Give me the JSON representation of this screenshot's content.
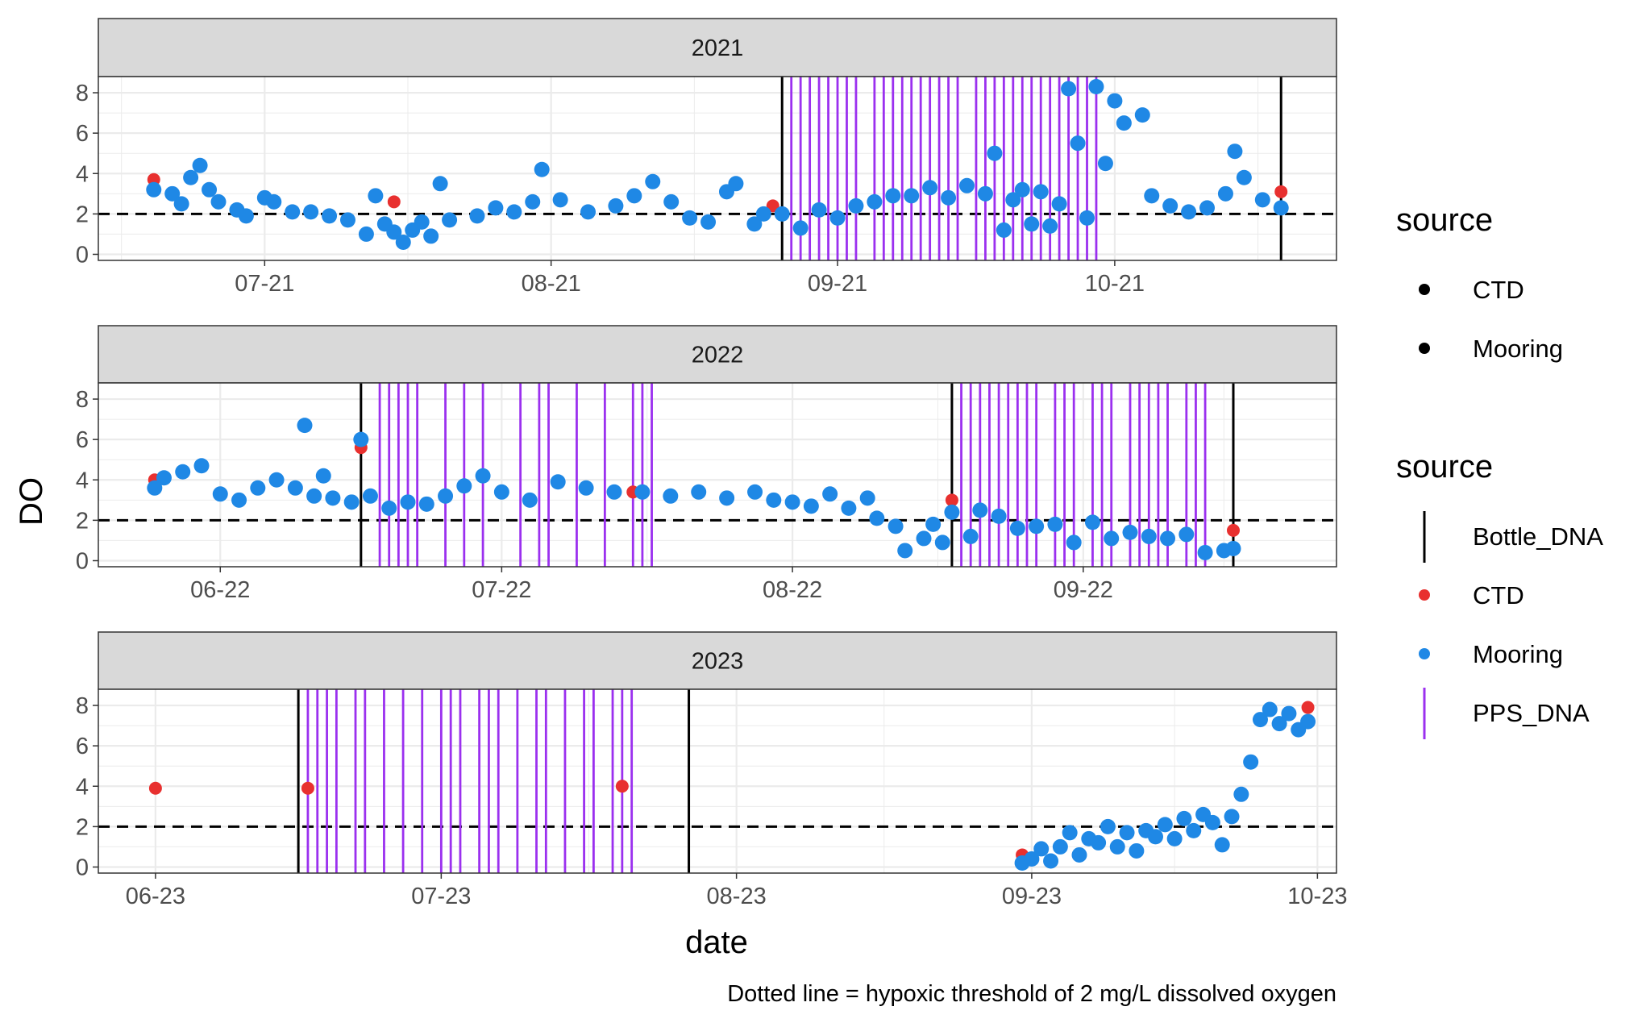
{
  "chart_data": {
    "type": "scatter",
    "facet_variable": "year",
    "xlabel": "date",
    "ylabel": "DO",
    "caption": "Dotted line = hypoxic threshold of 2 mg/L dissolved oxygen",
    "hypoxic_threshold": 2,
    "ylim": [
      -0.3,
      8.8
    ],
    "y_ticks": [
      0,
      2,
      4,
      6,
      8
    ],
    "grid": true,
    "facets": [
      {
        "label": "2021",
        "xlim": [
          "2021-06-13",
          "2021-10-25"
        ],
        "x_ticks": [
          {
            "date": "2021-07-01",
            "label": "07-21"
          },
          {
            "date": "2021-08-01",
            "label": "08-21"
          },
          {
            "date": "2021-09-01",
            "label": "09-21"
          },
          {
            "date": "2021-10-01",
            "label": "10-21"
          }
        ],
        "ctd": [
          {
            "date": "2021-06-19",
            "do": 3.7
          },
          {
            "date": "2021-07-15",
            "do": 2.6
          },
          {
            "date": "2021-08-25",
            "do": 2.4
          },
          {
            "date": "2021-10-19",
            "do": 3.1
          }
        ],
        "mooring": [
          [
            "2021-06-19",
            3.2
          ],
          [
            "2021-06-21",
            3.0
          ],
          [
            "2021-06-22",
            2.5
          ],
          [
            "2021-06-23",
            3.8
          ],
          [
            "2021-06-24",
            4.4
          ],
          [
            "2021-06-25",
            3.2
          ],
          [
            "2021-06-26",
            2.6
          ],
          [
            "2021-06-28",
            2.2
          ],
          [
            "2021-06-29",
            1.9
          ],
          [
            "2021-07-01",
            2.8
          ],
          [
            "2021-07-02",
            2.6
          ],
          [
            "2021-07-04",
            2.1
          ],
          [
            "2021-07-06",
            2.1
          ],
          [
            "2021-07-08",
            1.9
          ],
          [
            "2021-07-10",
            1.7
          ],
          [
            "2021-07-12",
            1.0
          ],
          [
            "2021-07-13",
            2.9
          ],
          [
            "2021-07-14",
            1.5
          ],
          [
            "2021-07-15",
            1.1
          ],
          [
            "2021-07-16",
            0.6
          ],
          [
            "2021-07-17",
            1.2
          ],
          [
            "2021-07-18",
            1.6
          ],
          [
            "2021-07-19",
            0.9
          ],
          [
            "2021-07-20",
            3.5
          ],
          [
            "2021-07-21",
            1.7
          ],
          [
            "2021-07-24",
            1.9
          ],
          [
            "2021-07-26",
            2.3
          ],
          [
            "2021-07-28",
            2.1
          ],
          [
            "2021-07-30",
            2.6
          ],
          [
            "2021-07-31",
            4.2
          ],
          [
            "2021-08-02",
            2.7
          ],
          [
            "2021-08-05",
            2.1
          ],
          [
            "2021-08-08",
            2.4
          ],
          [
            "2021-08-10",
            2.9
          ],
          [
            "2021-08-12",
            3.6
          ],
          [
            "2021-08-14",
            2.6
          ],
          [
            "2021-08-16",
            1.8
          ],
          [
            "2021-08-18",
            1.6
          ],
          [
            "2021-08-20",
            3.1
          ],
          [
            "2021-08-21",
            3.5
          ],
          [
            "2021-08-23",
            1.5
          ],
          [
            "2021-08-24",
            2.0
          ],
          [
            "2021-08-26",
            2.0
          ],
          [
            "2021-08-28",
            1.3
          ],
          [
            "2021-08-30",
            2.2
          ],
          [
            "2021-09-01",
            1.8
          ],
          [
            "2021-09-03",
            2.4
          ],
          [
            "2021-09-05",
            2.6
          ],
          [
            "2021-09-07",
            2.9
          ],
          [
            "2021-09-09",
            2.9
          ],
          [
            "2021-09-11",
            3.3
          ],
          [
            "2021-09-13",
            2.8
          ],
          [
            "2021-09-15",
            3.4
          ],
          [
            "2021-09-17",
            3.0
          ],
          [
            "2021-09-18",
            5.0
          ],
          [
            "2021-09-19",
            1.2
          ],
          [
            "2021-09-20",
            2.7
          ],
          [
            "2021-09-21",
            3.2
          ],
          [
            "2021-09-22",
            1.5
          ],
          [
            "2021-09-23",
            3.1
          ],
          [
            "2021-09-24",
            1.4
          ],
          [
            "2021-09-25",
            2.5
          ],
          [
            "2021-09-26",
            8.2
          ],
          [
            "2021-09-27",
            5.5
          ],
          [
            "2021-09-28",
            1.8
          ],
          [
            "2021-09-29",
            8.3
          ],
          [
            "2021-09-30",
            4.5
          ],
          [
            "2021-10-01",
            7.6
          ],
          [
            "2021-10-02",
            6.5
          ],
          [
            "2021-10-04",
            6.9
          ],
          [
            "2021-10-05",
            2.9
          ],
          [
            "2021-10-07",
            2.4
          ],
          [
            "2021-10-09",
            2.1
          ],
          [
            "2021-10-11",
            2.3
          ],
          [
            "2021-10-13",
            3.0
          ],
          [
            "2021-10-14",
            5.1
          ],
          [
            "2021-10-15",
            3.8
          ],
          [
            "2021-10-17",
            2.7
          ],
          [
            "2021-10-19",
            2.3
          ]
        ],
        "bottle_dna": [
          "2021-08-26",
          "2021-10-19"
        ],
        "pps_dna": [
          "2021-08-27",
          "2021-08-28",
          "2021-08-29",
          "2021-08-30",
          "2021-08-31",
          "2021-09-01",
          "2021-09-02",
          "2021-09-03",
          "2021-09-05",
          "2021-09-06",
          "2021-09-07",
          "2021-09-08",
          "2021-09-09",
          "2021-09-10",
          "2021-09-11",
          "2021-09-12",
          "2021-09-13",
          "2021-09-14",
          "2021-09-16",
          "2021-09-17",
          "2021-09-18",
          "2021-09-19",
          "2021-09-20",
          "2021-09-21",
          "2021-09-22",
          "2021-09-23",
          "2021-09-24",
          "2021-09-25",
          "2021-09-26",
          "2021-09-27",
          "2021-09-28",
          "2021-09-29"
        ]
      },
      {
        "label": "2022",
        "xlim": [
          "2022-06-09",
          "2022-10-19"
        ],
        "x_ticks": [
          {
            "date": "2022-06-22",
            "label": "06-22"
          },
          {
            "date": "2022-07-22",
            "label": "07-22"
          },
          {
            "date": "2022-08-22",
            "label": "08-22"
          },
          {
            "date": "2022-09-22",
            "label": "09-22"
          }
        ],
        "ctd": [
          {
            "date": "2022-06-15",
            "do": 4.0
          },
          {
            "date": "2022-07-07",
            "do": 5.6
          },
          {
            "date": "2022-08-05",
            "do": 3.4
          },
          {
            "date": "2022-09-08",
            "do": 3.0
          },
          {
            "date": "2022-10-08",
            "do": 1.5
          }
        ],
        "mooring": [
          [
            "2022-06-15",
            3.6
          ],
          [
            "2022-06-16",
            4.1
          ],
          [
            "2022-06-18",
            4.4
          ],
          [
            "2022-06-20",
            4.7
          ],
          [
            "2022-06-22",
            3.3
          ],
          [
            "2022-06-24",
            3.0
          ],
          [
            "2022-06-26",
            3.6
          ],
          [
            "2022-06-28",
            4.0
          ],
          [
            "2022-06-30",
            3.6
          ],
          [
            "2022-07-01",
            6.7
          ],
          [
            "2022-07-02",
            3.2
          ],
          [
            "2022-07-03",
            4.2
          ],
          [
            "2022-07-04",
            3.1
          ],
          [
            "2022-07-06",
            2.9
          ],
          [
            "2022-07-07",
            6.0
          ],
          [
            "2022-07-08",
            3.2
          ],
          [
            "2022-07-10",
            2.6
          ],
          [
            "2022-07-12",
            2.9
          ],
          [
            "2022-07-14",
            2.8
          ],
          [
            "2022-07-16",
            3.2
          ],
          [
            "2022-07-18",
            3.7
          ],
          [
            "2022-07-20",
            4.2
          ],
          [
            "2022-07-22",
            3.4
          ],
          [
            "2022-07-25",
            3.0
          ],
          [
            "2022-07-28",
            3.9
          ],
          [
            "2022-07-31",
            3.6
          ],
          [
            "2022-08-03",
            3.4
          ],
          [
            "2022-08-06",
            3.4
          ],
          [
            "2022-08-09",
            3.2
          ],
          [
            "2022-08-12",
            3.4
          ],
          [
            "2022-08-15",
            3.1
          ],
          [
            "2022-08-18",
            3.4
          ],
          [
            "2022-08-20",
            3.0
          ],
          [
            "2022-08-22",
            2.9
          ],
          [
            "2022-08-24",
            2.7
          ],
          [
            "2022-08-26",
            3.3
          ],
          [
            "2022-08-28",
            2.6
          ],
          [
            "2022-08-30",
            3.1
          ],
          [
            "2022-08-31",
            2.1
          ],
          [
            "2022-09-02",
            1.7
          ],
          [
            "2022-09-03",
            0.5
          ],
          [
            "2022-09-05",
            1.1
          ],
          [
            "2022-09-06",
            1.8
          ],
          [
            "2022-09-07",
            0.9
          ],
          [
            "2022-09-08",
            2.4
          ],
          [
            "2022-09-10",
            1.2
          ],
          [
            "2022-09-11",
            2.5
          ],
          [
            "2022-09-13",
            2.2
          ],
          [
            "2022-09-15",
            1.6
          ],
          [
            "2022-09-17",
            1.7
          ],
          [
            "2022-09-19",
            1.8
          ],
          [
            "2022-09-21",
            0.9
          ],
          [
            "2022-09-23",
            1.9
          ],
          [
            "2022-09-25",
            1.1
          ],
          [
            "2022-09-27",
            1.4
          ],
          [
            "2022-09-29",
            1.2
          ],
          [
            "2022-10-01",
            1.1
          ],
          [
            "2022-10-03",
            1.3
          ],
          [
            "2022-10-05",
            0.4
          ],
          [
            "2022-10-07",
            0.5
          ],
          [
            "2022-10-08",
            0.6
          ]
        ],
        "bottle_dna": [
          "2022-07-07",
          "2022-09-08",
          "2022-10-08"
        ],
        "pps_dna": [
          "2022-07-09",
          "2022-07-10",
          "2022-07-11",
          "2022-07-12",
          "2022-07-13",
          "2022-07-16",
          "2022-07-18",
          "2022-07-20",
          "2022-07-24",
          "2022-07-26",
          "2022-07-27",
          "2022-07-30",
          "2022-08-02",
          "2022-08-05",
          "2022-08-06",
          "2022-08-07",
          "2022-09-09",
          "2022-09-10",
          "2022-09-11",
          "2022-09-12",
          "2022-09-13",
          "2022-09-14",
          "2022-09-15",
          "2022-09-16",
          "2022-09-17",
          "2022-09-19",
          "2022-09-20",
          "2022-09-21",
          "2022-09-23",
          "2022-09-24",
          "2022-09-25",
          "2022-09-27",
          "2022-09-28",
          "2022-09-29",
          "2022-09-30",
          "2022-10-01",
          "2022-10-03",
          "2022-10-04",
          "2022-10-05"
        ]
      },
      {
        "label": "2023",
        "xlim": [
          "2023-05-26",
          "2023-10-03"
        ],
        "x_ticks": [
          {
            "date": "2023-06-01",
            "label": "06-23"
          },
          {
            "date": "2023-07-01",
            "label": "07-23"
          },
          {
            "date": "2023-08-01",
            "label": "08-23"
          },
          {
            "date": "2023-09-01",
            "label": "09-23"
          },
          {
            "date": "2023-10-01",
            "label": "10-23"
          }
        ],
        "ctd": [
          {
            "date": "2023-06-01",
            "do": 3.9
          },
          {
            "date": "2023-06-17",
            "do": 3.9
          },
          {
            "date": "2023-07-20",
            "do": 4.0
          },
          {
            "date": "2023-08-31",
            "do": 0.6
          },
          {
            "date": "2023-09-30",
            "do": 7.9
          }
        ],
        "mooring": [
          [
            "2023-08-31",
            0.2
          ],
          [
            "2023-09-01",
            0.4
          ],
          [
            "2023-09-02",
            0.9
          ],
          [
            "2023-09-03",
            0.3
          ],
          [
            "2023-09-04",
            1.0
          ],
          [
            "2023-09-05",
            1.7
          ],
          [
            "2023-09-06",
            0.6
          ],
          [
            "2023-09-07",
            1.4
          ],
          [
            "2023-09-08",
            1.2
          ],
          [
            "2023-09-09",
            2.0
          ],
          [
            "2023-09-10",
            1.0
          ],
          [
            "2023-09-11",
            1.7
          ],
          [
            "2023-09-12",
            0.8
          ],
          [
            "2023-09-13",
            1.8
          ],
          [
            "2023-09-14",
            1.5
          ],
          [
            "2023-09-15",
            2.1
          ],
          [
            "2023-09-16",
            1.4
          ],
          [
            "2023-09-17",
            2.4
          ],
          [
            "2023-09-18",
            1.8
          ],
          [
            "2023-09-19",
            2.6
          ],
          [
            "2023-09-20",
            2.2
          ],
          [
            "2023-09-21",
            1.1
          ],
          [
            "2023-09-22",
            2.5
          ],
          [
            "2023-09-23",
            3.6
          ],
          [
            "2023-09-24",
            5.2
          ],
          [
            "2023-09-25",
            7.3
          ],
          [
            "2023-09-26",
            7.8
          ],
          [
            "2023-09-27",
            7.1
          ],
          [
            "2023-09-28",
            7.6
          ],
          [
            "2023-09-29",
            6.8
          ],
          [
            "2023-09-30",
            7.2
          ]
        ],
        "bottle_dna": [
          "2023-06-16",
          "2023-07-27"
        ],
        "pps_dna": [
          "2023-06-17",
          "2023-06-18",
          "2023-06-19",
          "2023-06-20",
          "2023-06-22",
          "2023-06-23",
          "2023-06-25",
          "2023-06-27",
          "2023-06-29",
          "2023-07-01",
          "2023-07-02",
          "2023-07-03",
          "2023-07-05",
          "2023-07-06",
          "2023-07-07",
          "2023-07-09",
          "2023-07-11",
          "2023-07-12",
          "2023-07-14",
          "2023-07-16",
          "2023-07-17",
          "2023-07-19",
          "2023-07-20",
          "2023-07-21"
        ]
      }
    ],
    "legends": [
      {
        "title": "source",
        "entries": [
          {
            "label": "CTD",
            "glyph": "point",
            "color": "#000000"
          },
          {
            "label": "Mooring",
            "glyph": "point",
            "color": "#000000"
          }
        ]
      },
      {
        "title": "source",
        "entries": [
          {
            "label": "Bottle_DNA",
            "glyph": "vline",
            "color": "#000000"
          },
          {
            "label": "CTD",
            "glyph": "point",
            "color": "#e8302f"
          },
          {
            "label": "Mooring",
            "glyph": "point",
            "color": "#1f88e5"
          },
          {
            "label": "PPS_DNA",
            "glyph": "vline",
            "color": "#9b30ef"
          }
        ]
      }
    ],
    "legend_position": "right",
    "colors": {
      "ctd": "#e8302f",
      "mooring": "#1f88e5",
      "bottle_dna": "#000000",
      "pps_dna": "#9b30ef",
      "threshold": "#000000",
      "strip_fill": "#d9d9d9",
      "grid": "#ebebeb"
    }
  }
}
